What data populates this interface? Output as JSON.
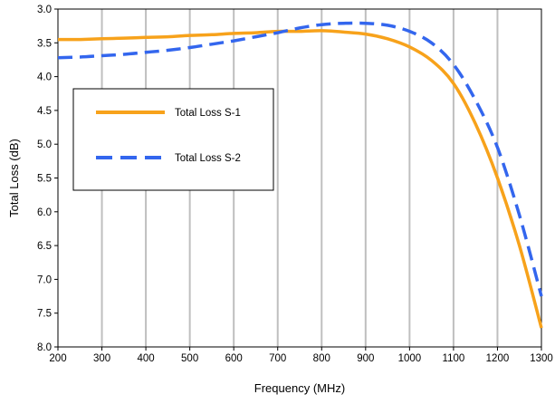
{
  "chart_data": {
    "type": "line",
    "title": "",
    "xlabel": "Frequency (MHz)",
    "ylabel": "Total Loss (dB)",
    "xlim": [
      200,
      1300
    ],
    "ylim": [
      3.0,
      8.0
    ],
    "y_inverted": true,
    "grid": {
      "vertical": true,
      "horizontal": false
    },
    "legend_position": "left",
    "x_ticks": [
      "200",
      "300",
      "400",
      "500",
      "600",
      "700",
      "800",
      "900",
      "1000",
      "1100",
      "1200",
      "1300"
    ],
    "y_ticks": [
      "3.0",
      "3.5",
      "4.0",
      "4.5",
      "5.0",
      "5.5",
      "6.0",
      "6.5",
      "7.0",
      "7.5",
      "8.0"
    ],
    "series": [
      {
        "name": "Total Loss S-1",
        "color": "#F7A21B",
        "style": "solid",
        "x": [
          200,
          250,
          300,
          350,
          400,
          450,
          500,
          550,
          600,
          650,
          700,
          750,
          800,
          850,
          900,
          950,
          1000,
          1050,
          1100,
          1150,
          1200,
          1250,
          1300
        ],
        "y": [
          3.45,
          3.45,
          3.44,
          3.43,
          3.42,
          3.41,
          3.39,
          3.38,
          3.36,
          3.35,
          3.33,
          3.33,
          3.32,
          3.34,
          3.37,
          3.44,
          3.56,
          3.76,
          4.1,
          4.7,
          5.5,
          6.5,
          7.72
        ]
      },
      {
        "name": "Total Loss S-2",
        "color": "#3366EE",
        "style": "dashed",
        "x": [
          200,
          250,
          300,
          350,
          400,
          450,
          500,
          550,
          600,
          650,
          700,
          750,
          800,
          850,
          900,
          950,
          1000,
          1050,
          1100,
          1150,
          1200,
          1250,
          1300
        ],
        "y": [
          3.72,
          3.71,
          3.69,
          3.67,
          3.64,
          3.61,
          3.57,
          3.52,
          3.47,
          3.41,
          3.35,
          3.28,
          3.23,
          3.21,
          3.21,
          3.24,
          3.33,
          3.5,
          3.82,
          4.35,
          5.05,
          6.05,
          7.25
        ]
      }
    ]
  }
}
